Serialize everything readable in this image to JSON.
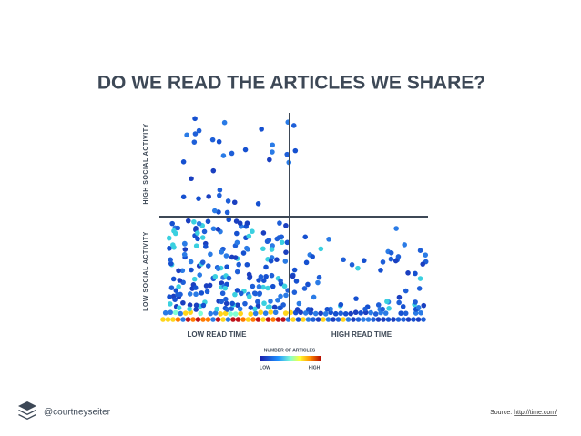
{
  "header": {
    "title": "DO WE READ THE ARTICLES WE SHARE?"
  },
  "axes": {
    "y_high": "HIGH SOCIAL ACTIVITY",
    "y_low": "LOW SOCIAL ACTIVITY",
    "x_low": "LOW READ TIME",
    "x_high": "HIGH READ TIME"
  },
  "legend": {
    "title": "NUMBER OF ARTICLES",
    "low": "LOW",
    "high": "HIGH"
  },
  "footer": {
    "handle": "@courtneyseiter",
    "source_label": "Source:",
    "source_link": "http://time.com/"
  }
}
